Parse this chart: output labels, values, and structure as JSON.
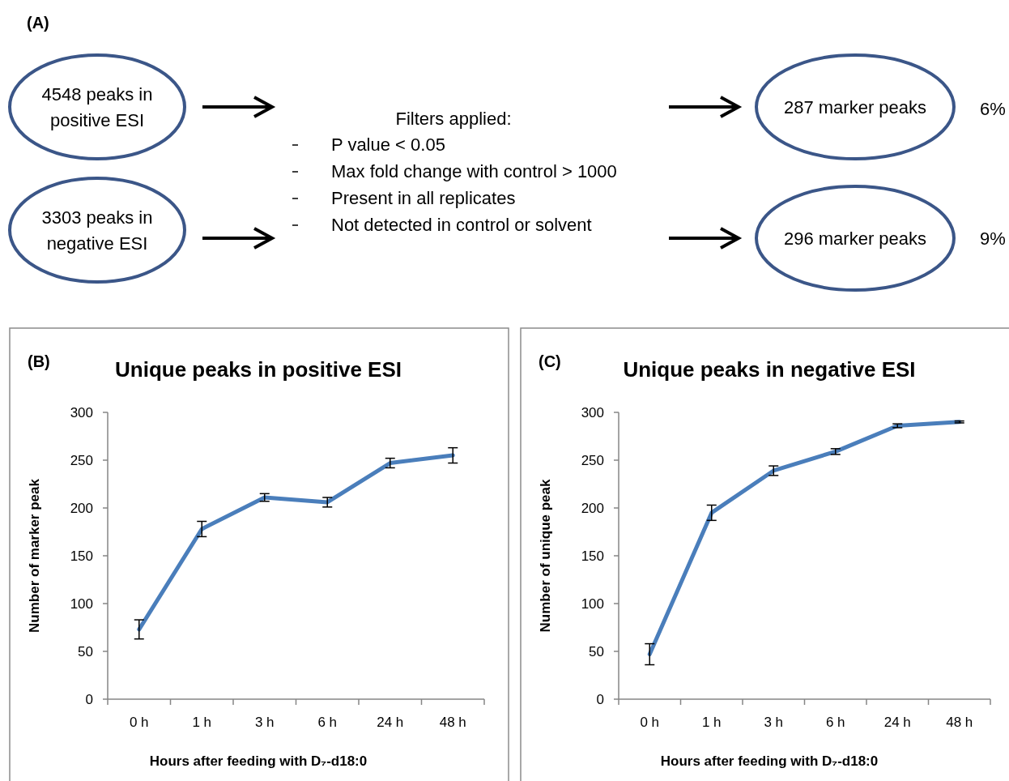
{
  "chart_data": [
    {
      "type": "other",
      "annotations": [
        "(A)",
        "4548 peaks in positive ESI",
        "3303 peaks in negative ESI",
        "Filters applied:",
        "P value < 0.05",
        "Max fold change with control > 1000",
        "Present in all replicates",
        "Not detected in control or solvent",
        "287 marker peaks",
        "296 marker peaks",
        "6%",
        "9%"
      ]
    },
    {
      "type": "line",
      "title": "Unique peaks in positive ESI",
      "xlabel": "Hours after feeding with D₇-d18:0",
      "ylabel": "Number of marker peak",
      "annotations": [
        "(B)"
      ],
      "categories": [
        "0 h",
        "1 h",
        "3 h",
        "6 h",
        "24 h",
        "48 h"
      ],
      "series": [
        {
          "color": "#4a7ebb",
          "values": [
            73,
            178,
            211,
            206,
            247,
            255
          ],
          "errors": [
            10,
            8,
            4,
            5,
            5,
            8
          ]
        }
      ],
      "ylim": [
        0,
        300
      ],
      "yticks": [
        0,
        50,
        100,
        150,
        200,
        250,
        300
      ],
      "grid": false,
      "marker": "none",
      "line_style": "solid"
    },
    {
      "type": "line",
      "title": "Unique peaks  in negative ESI",
      "xlabel": "Hours after feeding with D₇-d18:0",
      "ylabel": "Number of unique peak",
      "annotations": [
        "(C)"
      ],
      "categories": [
        "0 h",
        "1 h",
        "3 h",
        "6 h",
        "24 h",
        "48 h"
      ],
      "series": [
        {
          "color": "#4a7ebb",
          "values": [
            47,
            195,
            239,
            259,
            286,
            290
          ],
          "errors": [
            11,
            8,
            5,
            3,
            2,
            1
          ]
        }
      ],
      "ylim": [
        0,
        300
      ],
      "yticks": [
        0,
        50,
        100,
        150,
        200,
        250,
        300
      ],
      "grid": false,
      "marker": "none",
      "line_style": "solid"
    }
  ]
}
